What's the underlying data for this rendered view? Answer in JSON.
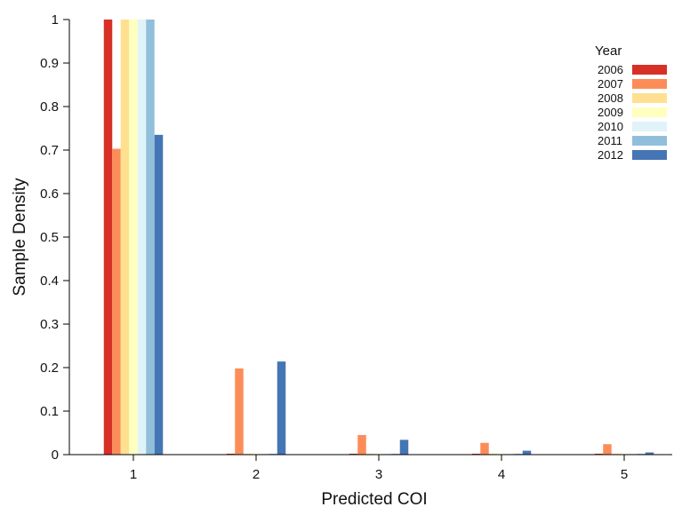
{
  "chart_data": {
    "type": "bar",
    "xlabel": "Predicted COI",
    "ylabel": "Sample Density",
    "categories": [
      "1",
      "2",
      "3",
      "4",
      "5"
    ],
    "ylim": [
      0,
      1
    ],
    "yticks": [
      "0",
      "0.1",
      "0.2",
      "0.3",
      "0.4",
      "0.5",
      "0.6",
      "0.7",
      "0.8",
      "0.9",
      "1"
    ],
    "grid": false,
    "legend": {
      "title": "Year",
      "position": "top-right"
    },
    "series": [
      {
        "name": "2006",
        "color": "#d73027",
        "values": [
          1.0,
          0.002,
          0.002,
          0.002,
          0.002
        ]
      },
      {
        "name": "2007",
        "color": "#fc8d59",
        "values": [
          0.703,
          0.198,
          0.045,
          0.027,
          0.024
        ]
      },
      {
        "name": "2008",
        "color": "#fee090",
        "values": [
          1.0,
          0.0,
          0.0,
          0.0,
          0.0
        ]
      },
      {
        "name": "2009",
        "color": "#ffffbf",
        "values": [
          1.0,
          0.0,
          0.0,
          0.0,
          0.0
        ]
      },
      {
        "name": "2010",
        "color": "#e0f3f8",
        "values": [
          1.0,
          0.0,
          0.0,
          0.0,
          0.0
        ]
      },
      {
        "name": "2011",
        "color": "#91bfdb",
        "values": [
          1.0,
          0.0,
          0.0,
          0.0,
          0.0
        ]
      },
      {
        "name": "2012",
        "color": "#4575b4",
        "values": [
          0.735,
          0.214,
          0.034,
          0.009,
          0.005
        ]
      }
    ]
  }
}
